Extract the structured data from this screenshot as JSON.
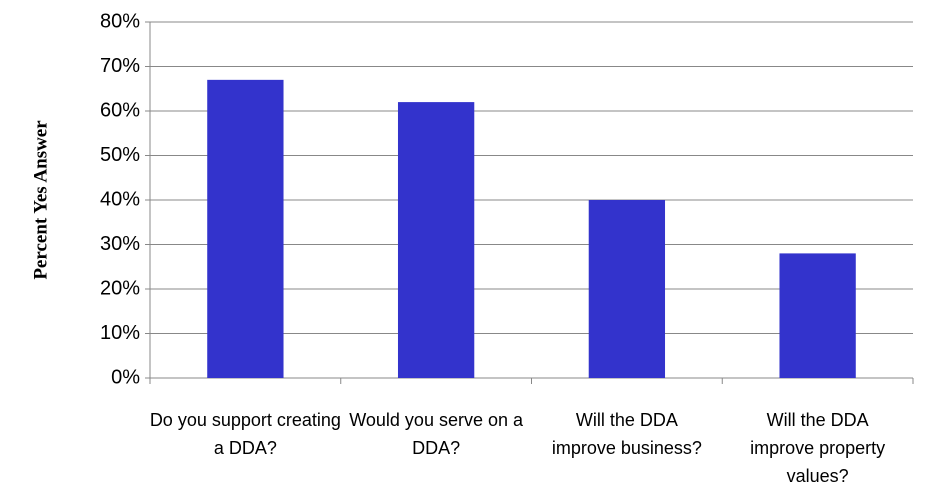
{
  "chart_data": {
    "type": "bar",
    "y_label": "Percent Yes Answer",
    "categories": [
      "Do you support creating a DDA?",
      "Would you serve on a DDA?",
      "Will the DDA improve business?",
      "Will the DDA improve property values?"
    ],
    "values": [
      67,
      62,
      40,
      28
    ],
    "color": "#3333cc",
    "ylim": [
      0,
      80
    ],
    "yticks": [
      {
        "value": 0,
        "label": "0%"
      },
      {
        "value": 10,
        "label": "10%"
      },
      {
        "value": 20,
        "label": "20%"
      },
      {
        "value": 30,
        "label": "30%"
      },
      {
        "value": 40,
        "label": "40%"
      },
      {
        "value": 50,
        "label": "50%"
      },
      {
        "value": 60,
        "label": "60%"
      },
      {
        "value": 70,
        "label": "70%"
      },
      {
        "value": 80,
        "label": "80%"
      }
    ],
    "grid": true
  }
}
